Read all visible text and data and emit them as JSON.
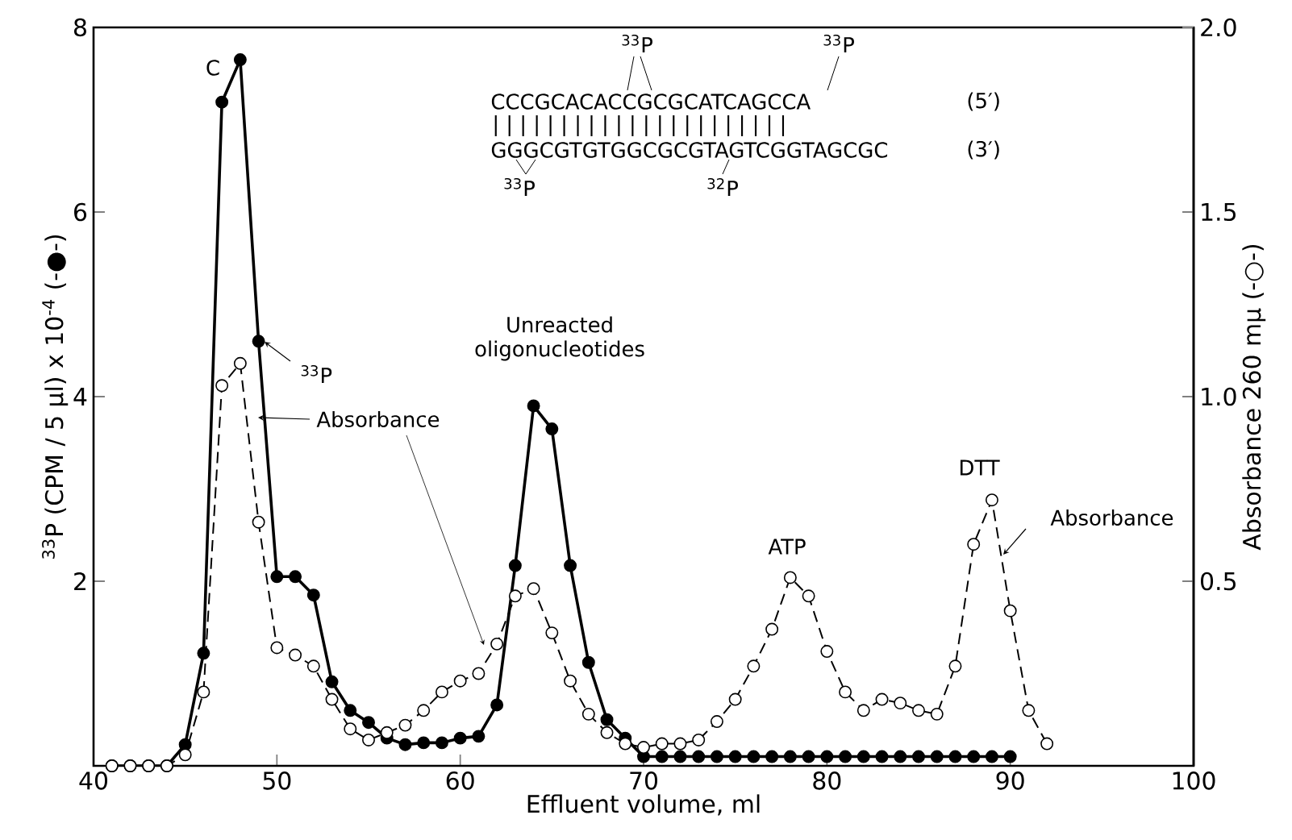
{
  "chart_data": {
    "type": "line",
    "xlabel": "Effluent volume, ml",
    "ylabel": "$^{33}$P (CPM / 5 µl) x 10$^{-4}$ (-●-)",
    "y2label": "Absorbance  260 mµ (-○-)",
    "xlim": [
      40,
      100
    ],
    "xticks": [
      40,
      50,
      60,
      70,
      80,
      90,
      100
    ],
    "ylim": [
      0,
      8
    ],
    "yticks": [
      2,
      4,
      6,
      8
    ],
    "y2lim": [
      0,
      2.0
    ],
    "y2ticks": [
      0.5,
      {
        "value": 1.0,
        "label": "1.0"
      },
      1.5,
      {
        "value": 2.0,
        "label": "2.0"
      }
    ],
    "marker": "circle",
    "series": [
      {
        "name": "$^{33}$P",
        "color": "#000000",
        "line_style": "solid",
        "x": [
          41,
          42,
          43,
          44,
          45,
          46,
          47,
          48,
          49,
          50,
          51,
          52,
          53,
          54,
          55,
          56,
          57,
          58,
          59,
          60,
          61,
          62,
          63,
          64,
          65,
          66,
          67,
          68,
          69,
          70,
          71,
          72,
          73,
          74,
          75,
          76,
          77,
          78,
          79,
          80,
          81,
          82,
          83,
          84,
          85,
          86,
          87,
          88,
          89,
          90
        ],
        "values": [
          0,
          0,
          0,
          0,
          0.23,
          1.22,
          7.19,
          7.65,
          4.6,
          2.05,
          2.05,
          1.85,
          0.91,
          0.6,
          0.47,
          0.3,
          0.23,
          0.25,
          0.25,
          0.3,
          0.32,
          0.66,
          2.17,
          3.9,
          3.65,
          2.17,
          1.12,
          0.5,
          0.3,
          0.1,
          0.1,
          0.1,
          0.1,
          0.1,
          0.1,
          0.1,
          0.1,
          0.1,
          0.1,
          0.1,
          0.1,
          0.1,
          0.1,
          0.1,
          0.1,
          0.1,
          0.1,
          0.1,
          0.1,
          0.1
        ]
      },
      {
        "name": "Absorbance",
        "color": "#000000",
        "line_style": "dashed",
        "axis": "y2",
        "x": [
          41,
          42,
          43,
          44,
          45,
          46,
          47,
          48,
          49,
          50,
          51,
          52,
          53,
          54,
          55,
          56,
          57,
          58,
          59,
          60,
          61,
          62,
          63,
          64,
          65,
          66,
          67,
          68,
          69,
          70,
          71,
          72,
          73,
          74,
          75,
          76,
          77,
          78,
          79,
          80,
          81,
          82,
          83,
          84,
          85,
          86,
          87,
          88,
          89,
          90,
          91,
          92
        ],
        "values": [
          0,
          0,
          0,
          0,
          0.03,
          0.2,
          1.03,
          1.09,
          0.66,
          0.32,
          0.3,
          0.27,
          0.18,
          0.1,
          0.07,
          0.09,
          0.11,
          0.15,
          0.2,
          0.23,
          0.25,
          0.33,
          0.46,
          0.48,
          0.36,
          0.23,
          0.14,
          0.09,
          0.06,
          0.05,
          0.06,
          0.06,
          0.07,
          0.12,
          0.18,
          0.27,
          0.37,
          0.51,
          0.46,
          0.31,
          0.2,
          0.15,
          0.18,
          0.17,
          0.15,
          0.14,
          0.27,
          0.6,
          0.72,
          0.42,
          0.15,
          0.06
        ]
      }
    ],
    "annotations": [
      "C",
      "Absorbance",
      "Unreacted oligonucleotides",
      "ATP",
      "DTT",
      "$^{33}$P",
      "$^{33}$P",
      "CCCGCACACCGCGCATCAGCCA",
      "(5′)",
      "| | | | | | | | | | | | | | | | | | | | | |",
      "GGGCGTGTGGCGCGTAGTCGGTAGCGC",
      "(3′)",
      "$^{33}$P",
      "$^{32}$P"
    ]
  }
}
